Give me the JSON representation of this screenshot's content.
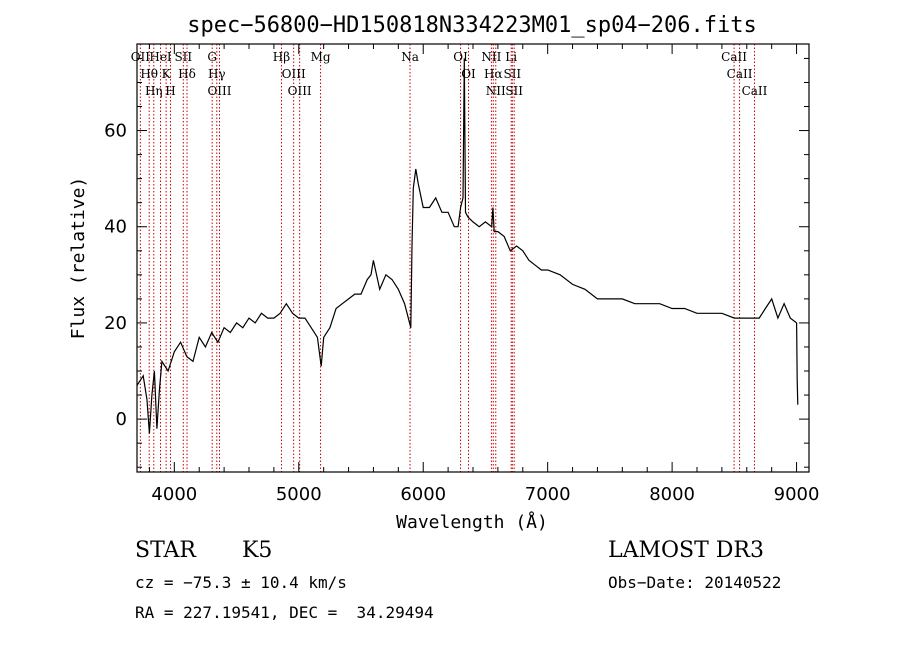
{
  "chart_data": {
    "type": "line",
    "title": "spec−56800−HD150818N334223M01_sp04−206.fits",
    "xlabel": "Wavelength (Å)",
    "ylabel": "Flux (relative)",
    "xlim": [
      3700,
      9100
    ],
    "ylim": [
      -11,
      78
    ],
    "x_ticks": [
      4000,
      5000,
      6000,
      7000,
      8000,
      9000
    ],
    "y_ticks": [
      0,
      20,
      40,
      60
    ],
    "grid": false,
    "series": [
      {
        "x": [
          3700,
          3750,
          3780,
          3800,
          3820,
          3840,
          3860,
          3880,
          3900,
          3950,
          4000,
          4050,
          4100,
          4150,
          4200,
          4250,
          4300,
          4350,
          4400,
          4450,
          4500,
          4550,
          4600,
          4650,
          4700,
          4750,
          4800,
          4850,
          4900,
          4950,
          5000,
          5050,
          5100,
          5150,
          5180,
          5200,
          5250,
          5300,
          5350,
          5400,
          5450,
          5500,
          5550,
          5580,
          5600,
          5650,
          5700,
          5750,
          5800,
          5850,
          5900,
          5910,
          5920,
          5940,
          5960,
          6000,
          6050,
          6100,
          6150,
          6200,
          6250,
          6280,
          6300,
          6320,
          6330,
          6340,
          6360,
          6400,
          6450,
          6500,
          6550,
          6560,
          6570,
          6600,
          6650,
          6700,
          6750,
          6800,
          6850,
          6900,
          6950,
          7000,
          7100,
          7200,
          7300,
          7400,
          7500,
          7600,
          7700,
          7800,
          7900,
          8000,
          8100,
          8200,
          8300,
          8400,
          8500,
          8600,
          8700,
          8750,
          8800,
          8850,
          8900,
          8950,
          9000,
          9005,
          9010
        ],
        "y": [
          7,
          9,
          4,
          -3,
          5,
          10,
          -2,
          6,
          12,
          10,
          14,
          16,
          13,
          12,
          17,
          15,
          18,
          16,
          19,
          18,
          20,
          19,
          21,
          20,
          22,
          21,
          21,
          22,
          24,
          22,
          21,
          21,
          19,
          17,
          11,
          17,
          19,
          23,
          24,
          25,
          26,
          26,
          29,
          30,
          33,
          27,
          30,
          29,
          27,
          24,
          19,
          36,
          48,
          52,
          49,
          44,
          44,
          46,
          43,
          43,
          40,
          40,
          44,
          46,
          75,
          43,
          42,
          41,
          40,
          41,
          40,
          44,
          39,
          39,
          38,
          35,
          36,
          35,
          33,
          32,
          31,
          31,
          30,
          28,
          27,
          25,
          25,
          25,
          24,
          24,
          24,
          23,
          23,
          22,
          22,
          22,
          21,
          21,
          21,
          23,
          25,
          21,
          24,
          21,
          20,
          8,
          3
        ]
      }
    ],
    "line_markers": [
      {
        "wavelength": 3727,
        "label": "OII"
      },
      {
        "wavelength": 3798,
        "label": "Hθ"
      },
      {
        "wavelength": 3835,
        "label": "Hη"
      },
      {
        "wavelength": 3889,
        "label": "HeI"
      },
      {
        "wavelength": 3934,
        "label": "K"
      },
      {
        "wavelength": 3969,
        "label": "H"
      },
      {
        "wavelength": 4072,
        "label": "SII"
      },
      {
        "wavelength": 4102,
        "label": "Hδ"
      },
      {
        "wavelength": 4304,
        "label": "G"
      },
      {
        "wavelength": 4341,
        "label": "Hγ"
      },
      {
        "wavelength": 4363,
        "label": "OIII"
      },
      {
        "wavelength": 4861,
        "label": "Hβ"
      },
      {
        "wavelength": 4959,
        "label": "OIII"
      },
      {
        "wavelength": 5007,
        "label": "OIII"
      },
      {
        "wavelength": 5175,
        "label": "Mg"
      },
      {
        "wavelength": 5894,
        "label": "Na"
      },
      {
        "wavelength": 6300,
        "label": "OI"
      },
      {
        "wavelength": 6364,
        "label": "OI"
      },
      {
        "wavelength": 6548,
        "label": "NII"
      },
      {
        "wavelength": 6563,
        "label": "Hα"
      },
      {
        "wavelength": 6583,
        "label": "NII"
      },
      {
        "wavelength": 6707,
        "label": "Li"
      },
      {
        "wavelength": 6716,
        "label": "SII"
      },
      {
        "wavelength": 6731,
        "label": "SII"
      },
      {
        "wavelength": 8498,
        "label": "CaII"
      },
      {
        "wavelength": 8542,
        "label": "CaII"
      },
      {
        "wavelength": 8662,
        "label": "CaII"
      }
    ]
  },
  "info": {
    "class": "STAR",
    "subclass": "K5",
    "survey": "LAMOST DR3",
    "cz": "cz = −75.3 ± 10.4 km/s",
    "obs_date": "Obs−Date: 20140522",
    "coords": "RA = 227.19541, DEC =  34.29494"
  },
  "colors": {
    "spectrum": "#000000",
    "marker_line": "#cc0000",
    "axes": "#000000",
    "background": "#ffffff"
  }
}
